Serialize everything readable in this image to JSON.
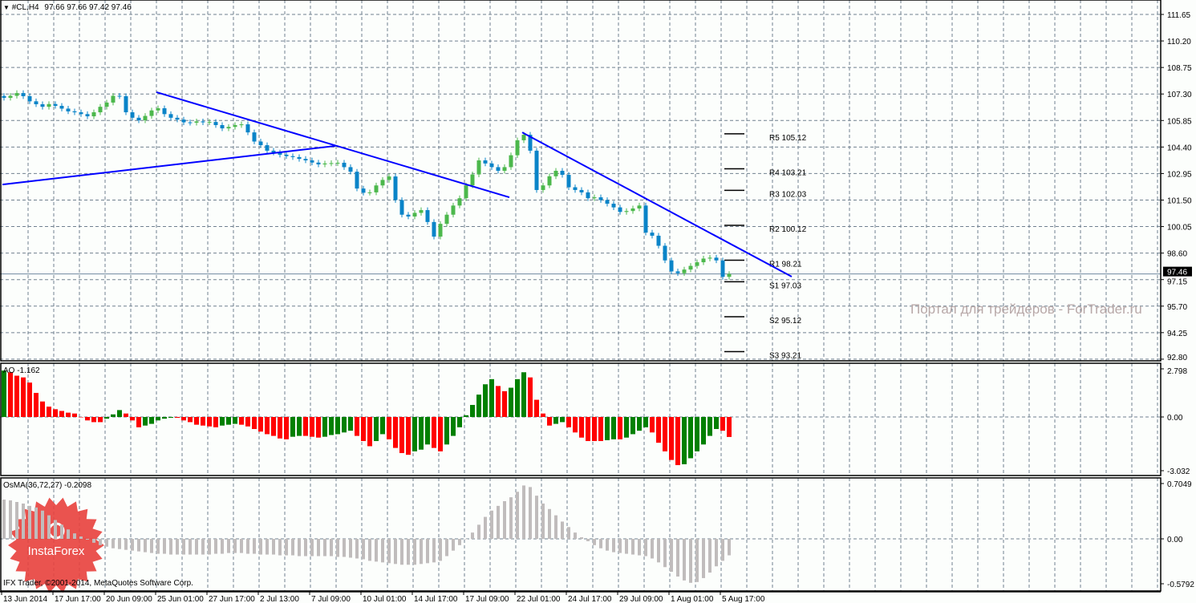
{
  "header": {
    "symbol": "#CL,H4",
    "ohlc": "97.66 97.66 97.42 97.46"
  },
  "price_axis": {
    "ticks": [
      "111.65",
      "110.20",
      "108.75",
      "107.30",
      "105.85",
      "104.40",
      "102.95",
      "101.50",
      "100.05",
      "98.60",
      "97.15",
      "95.70",
      "94.25",
      "92.80"
    ],
    "current_price": "97.46"
  },
  "time_axis": {
    "labels": [
      "13 Jun 2014",
      "17 Jun 17:00",
      "20 Jun 09:00",
      "25 Jun 01:00",
      "27 Jun 17:00",
      "2 Jul 13:00",
      "7 Jul 09:00",
      "10 Jul 01:00",
      "14 Jul 17:00",
      "17 Jul 09:00",
      "22 Jul 01:00",
      "24 Jul 17:00",
      "29 Jul 09:00",
      "1 Aug 01:00",
      "5 Aug 17:00"
    ]
  },
  "pivots": [
    {
      "label": "R5 105.12",
      "value": 105.12
    },
    {
      "label": "R4 103.21",
      "value": 103.21
    },
    {
      "label": "R3 102.03",
      "value": 102.03
    },
    {
      "label": "R2 100.12",
      "value": 100.12
    },
    {
      "label": "R1 98.21",
      "value": 98.21
    },
    {
      "label": "S1 97.03",
      "value": 97.03
    },
    {
      "label": "S2 95.12",
      "value": 95.12
    },
    {
      "label": "S3 93.21",
      "value": 93.21
    }
  ],
  "trendlines": [
    {
      "start_price": 107.4,
      "end_price": 101.65
    },
    {
      "start_price": 102.35,
      "end_price": 104.46
    },
    {
      "start_price": 105.2,
      "end_price": 97.31
    }
  ],
  "ao": {
    "label": "AO -1.162",
    "ticks": [
      "2.798",
      "0.00",
      "-3.032"
    ]
  },
  "osma": {
    "label": "OsMA(36,72,27) -0.2098",
    "ticks": [
      "0.7049",
      "0.00",
      "-0.5792"
    ]
  },
  "watermark": "Портал для трейдеров - ForTrader.ru",
  "copyright": "IFX Trader, ©2001-2014, MetaQuotes Software Corp.",
  "logo": "InstaForex",
  "colors": {
    "up_candle": "#4cb84c",
    "down_candle": "#0a84c8",
    "trendline": "#0000ff",
    "ao_up": "#008000",
    "ao_down": "#ff0000",
    "osma": "#c0bcbc",
    "grid": "#70808f",
    "current_price_line": "#7088a0",
    "logo": "#e8403c"
  },
  "chart_data": [
    {
      "type": "candlestick",
      "title": "#CL,H4",
      "ylim": [
        92.8,
        111.65
      ],
      "grid": true,
      "close": [
        107.09,
        107.2,
        107.35,
        107.18,
        106.9,
        106.74,
        106.6,
        106.75,
        106.65,
        106.5,
        106.35,
        106.3,
        106.2,
        106.08,
        106.3,
        106.6,
        106.83,
        107.2,
        107.18,
        106.3,
        106.0,
        105.86,
        106.1,
        106.4,
        106.52,
        106.2,
        106.0,
        105.9,
        105.75,
        105.73,
        105.8,
        105.75,
        105.77,
        105.6,
        105.42,
        105.5,
        105.6,
        105.64,
        105.2,
        104.7,
        104.5,
        104.2,
        104.1,
        103.98,
        103.9,
        103.85,
        103.75,
        103.67,
        103.55,
        103.45,
        103.5,
        103.52,
        103.54,
        103.3,
        103.05,
        102.13,
        101.9,
        101.92,
        102.3,
        102.6,
        102.79,
        101.5,
        100.7,
        100.6,
        100.8,
        100.95,
        100.3,
        99.5,
        100.2,
        100.7,
        101.2,
        101.6,
        102.3,
        102.9,
        103.67,
        103.5,
        103.3,
        103.1,
        103.3,
        103.95,
        104.77,
        105.07,
        104.2,
        102.05,
        102.3,
        102.8,
        103.1,
        102.88,
        102.2,
        102.05,
        101.92,
        101.6,
        101.65,
        101.5,
        101.3,
        101.1,
        100.85,
        100.9,
        101.04,
        101.2,
        99.72,
        99.55,
        99.0,
        98.2,
        97.6,
        97.5,
        97.7,
        97.9,
        98.1,
        98.3,
        98.35,
        98.2,
        97.3,
        97.46
      ]
    },
    {
      "type": "bar",
      "name": "AO",
      "ylim": [
        -3.032,
        2.798
      ],
      "values": [
        2.7,
        2.6,
        2.4,
        2.3,
        2.0,
        1.4,
        0.9,
        0.6,
        0.45,
        0.35,
        0.25,
        0.2,
        0.0,
        -0.2,
        -0.3,
        -0.3,
        -0.1,
        0.15,
        0.4,
        0.2,
        -0.2,
        -0.6,
        -0.5,
        -0.4,
        -0.2,
        -0.1,
        -0.05,
        -0.05,
        -0.2,
        -0.3,
        -0.45,
        -0.5,
        -0.55,
        -0.6,
        -0.5,
        -0.45,
        -0.4,
        -0.45,
        -0.55,
        -0.7,
        -0.85,
        -1.0,
        -1.1,
        -1.25,
        -1.3,
        -1.15,
        -1.1,
        -1.1,
        -1.15,
        -1.2,
        -1.15,
        -1.05,
        -1.0,
        -0.9,
        -0.8,
        -1.1,
        -1.4,
        -1.7,
        -1.4,
        -1.0,
        -1.3,
        -1.8,
        -2.1,
        -2.2,
        -2.0,
        -1.9,
        -1.6,
        -1.8,
        -2.0,
        -1.6,
        -1.1,
        -0.6,
        0.1,
        0.7,
        1.3,
        1.9,
        2.2,
        1.8,
        1.5,
        1.7,
        2.2,
        2.6,
        2.3,
        1.0,
        0.2,
        -0.5,
        -0.4,
        -0.3,
        -0.6,
        -0.9,
        -1.2,
        -1.4,
        -1.4,
        -1.4,
        -1.35,
        -1.3,
        -1.3,
        -1.2,
        -1.0,
        -0.8,
        -0.6,
        -0.9,
        -1.5,
        -2.0,
        -2.5,
        -2.8,
        -2.75,
        -2.4,
        -2.0,
        -1.6,
        -1.1,
        -0.7,
        -0.8,
        -1.162
      ]
    },
    {
      "type": "bar",
      "name": "OsMA(36,72,27)",
      "ylim": [
        -0.5792,
        0.7049
      ],
      "values": [
        0.5,
        0.49,
        0.47,
        0.45,
        0.42,
        0.4,
        0.36,
        0.3,
        0.24,
        0.18,
        0.12,
        0.07,
        0.03,
        -0.01,
        -0.05,
        -0.08,
        -0.1,
        -0.12,
        -0.13,
        -0.14,
        -0.15,
        -0.16,
        -0.17,
        -0.18,
        -0.19,
        -0.19,
        -0.2,
        -0.2,
        -0.2,
        -0.2,
        -0.2,
        -0.2,
        -0.2,
        -0.19,
        -0.19,
        -0.18,
        -0.18,
        -0.18,
        -0.19,
        -0.19,
        -0.2,
        -0.2,
        -0.2,
        -0.21,
        -0.21,
        -0.21,
        -0.22,
        -0.22,
        -0.22,
        -0.22,
        -0.22,
        -0.22,
        -0.23,
        -0.23,
        -0.24,
        -0.25,
        -0.26,
        -0.28,
        -0.29,
        -0.3,
        -0.31,
        -0.32,
        -0.33,
        -0.33,
        -0.33,
        -0.32,
        -0.31,
        -0.3,
        -0.28,
        -0.22,
        -0.15,
        -0.08,
        0.0,
        0.08,
        0.18,
        0.28,
        0.36,
        0.42,
        0.48,
        0.53,
        0.6,
        0.68,
        0.66,
        0.55,
        0.45,
        0.38,
        0.3,
        0.22,
        0.15,
        0.08,
        0.02,
        -0.03,
        -0.08,
        -0.12,
        -0.15,
        -0.17,
        -0.18,
        -0.19,
        -0.2,
        -0.21,
        -0.22,
        -0.25,
        -0.3,
        -0.36,
        -0.42,
        -0.48,
        -0.53,
        -0.56,
        -0.55,
        -0.5,
        -0.43,
        -0.35,
        -0.28,
        -0.2098
      ]
    }
  ]
}
